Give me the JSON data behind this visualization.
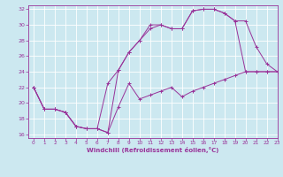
{
  "title": "",
  "xlabel": "Windchill (Refroidissement éolien,°C)",
  "background_color": "#cce8f0",
  "line_color": "#993399",
  "grid_color": "#ffffff",
  "xlim": [
    -0.5,
    23
  ],
  "ylim": [
    15.5,
    32.5
  ],
  "yticks": [
    16,
    18,
    20,
    22,
    24,
    26,
    28,
    30,
    32
  ],
  "xticks": [
    0,
    1,
    2,
    3,
    4,
    5,
    6,
    7,
    8,
    9,
    10,
    11,
    12,
    13,
    14,
    15,
    16,
    17,
    18,
    19,
    20,
    21,
    22,
    23
  ],
  "series1_x": [
    0,
    1,
    2,
    3,
    4,
    5,
    6,
    7,
    8,
    9,
    10,
    11,
    12,
    13,
    14,
    15,
    16,
    17,
    18,
    19,
    20,
    21,
    22,
    23
  ],
  "series1_y": [
    22.0,
    19.2,
    19.2,
    18.8,
    17.0,
    16.7,
    16.7,
    16.2,
    19.5,
    22.5,
    20.5,
    21.0,
    21.5,
    22.0,
    20.8,
    21.5,
    22.0,
    22.5,
    23.0,
    23.5,
    24.0,
    24.0,
    24.0,
    24.0
  ],
  "series2_x": [
    0,
    1,
    2,
    3,
    4,
    5,
    6,
    7,
    8,
    9,
    10,
    11,
    12,
    13,
    14,
    15,
    16,
    17,
    18,
    19,
    20,
    21,
    22,
    23
  ],
  "series2_y": [
    22.0,
    19.2,
    19.2,
    18.8,
    17.0,
    16.7,
    16.7,
    16.2,
    24.2,
    26.5,
    28.0,
    30.0,
    30.0,
    29.5,
    29.5,
    31.8,
    32.0,
    32.0,
    31.5,
    30.5,
    24.0,
    24.0,
    24.0,
    24.0
  ],
  "series3_x": [
    0,
    1,
    2,
    3,
    4,
    5,
    6,
    7,
    8,
    9,
    10,
    11,
    12,
    13,
    14,
    15,
    16,
    17,
    18,
    19,
    20,
    21,
    22,
    23
  ],
  "series3_y": [
    22.0,
    19.2,
    19.2,
    18.8,
    17.0,
    16.7,
    16.7,
    22.5,
    24.2,
    26.5,
    28.0,
    29.5,
    30.0,
    29.5,
    29.5,
    31.8,
    32.0,
    32.0,
    31.5,
    30.5,
    30.5,
    27.2,
    25.0,
    24.0
  ]
}
